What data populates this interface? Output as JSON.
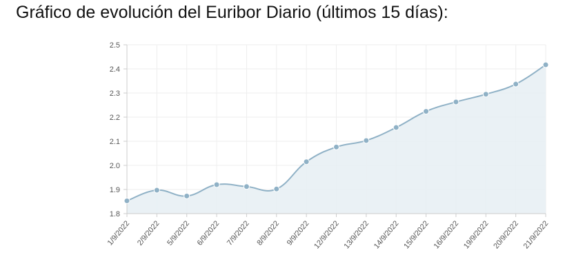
{
  "title": "Gráfico de evolución del Euribor Diario (últimos 15 días):",
  "chart_data": {
    "type": "area",
    "title": "Gráfico de evolución del Euribor Diario (últimos 15 días):",
    "xlabel": "",
    "ylabel": "",
    "categories": [
      "1/9/2022",
      "2/9/2022",
      "5/9/2022",
      "6/9/2022",
      "7/9/2022",
      "8/9/2022",
      "9/9/2022",
      "12/9/2022",
      "13/9/2022",
      "14/9/2022",
      "15/9/2022",
      "16/9/2022",
      "19/9/2022",
      "20/9/2022",
      "21/9/2022"
    ],
    "values": [
      1.853,
      1.897,
      1.873,
      1.92,
      1.912,
      1.902,
      2.015,
      2.076,
      2.103,
      2.157,
      2.224,
      2.263,
      2.295,
      2.337,
      2.417
    ],
    "ylim": [
      1.8,
      2.5
    ],
    "yticks": [
      "1.8",
      "1.9",
      "2.0",
      "2.1",
      "2.2",
      "2.3",
      "2.4",
      "2.5"
    ],
    "grid": true,
    "legend": "none",
    "colors": {
      "line": "#8fb1c6",
      "fill": "#e6eef3",
      "point": "#8fb1c6",
      "grid": "#eeeeee"
    }
  }
}
